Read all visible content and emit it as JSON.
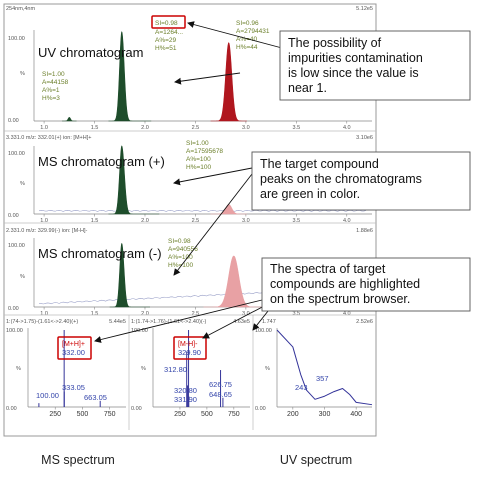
{
  "uv": {
    "header": "254nm,4nm",
    "scale": "5.12e5",
    "yticks": [
      "100.00",
      "%",
      "0.00"
    ],
    "label": "UV chromatogram",
    "info_green": [
      "SI=1.00",
      "A=44158",
      "A%=1",
      "H%=3"
    ],
    "si_top": "SI=0.98",
    "info_top_rest": [
      "A=1264...",
      "A%=29",
      "H%=51"
    ],
    "info_red": [
      "SI=0.96",
      "A=2794431",
      "A%=40",
      "H%=44"
    ]
  },
  "ms_pos": {
    "header": "3.331.0 m/z: 332.01(+) ion: [M+H]+",
    "scale": "3.10e6",
    "yticks": [
      "100.00",
      "%",
      "0.00"
    ],
    "label": "MS chromatogram (+)",
    "info": [
      "SI=1.00",
      "A=17595678",
      "A%=100",
      "H%=100"
    ]
  },
  "ms_neg": {
    "header": "2.331.0 m/z: 329.99(-) ion: [M-H]-",
    "scale": "1.88e6",
    "yticks": [
      "100.00",
      "%",
      "0.00"
    ],
    "label": "MS chromatogram (-)",
    "info": [
      "SI=0.98",
      "A=940556",
      "A%=100",
      "H%=100"
    ]
  },
  "rt_ticks": [
    "1.0",
    "1.5",
    "2.0",
    "2.5",
    "3.0",
    "3.5",
    "4.0"
  ],
  "spectra": {
    "panel1": {
      "header": "1:(74->1.75)-(1.61<->2.40)(+)",
      "scale": "5.44e5",
      "mh": "[M+H]+",
      "peak": "332.00",
      "labels": [
        "100.00",
        "333.05",
        "663.05"
      ],
      "ticks": [
        "250",
        "500",
        "750"
      ]
    },
    "panel2": {
      "header": "1:(1.74->1.76)-(1.61<->2.40)(-)",
      "scale": "4.63e5",
      "mh": "[M-H]-",
      "peak": "329.90",
      "labels": [
        "312.80",
        "320.80",
        "331.90",
        "626.75",
        "648.65"
      ],
      "ticks": [
        "250",
        "500",
        "750"
      ]
    },
    "panel3": {
      "header": "1.747",
      "scale": "2.52e6",
      "labels": [
        "243",
        "357"
      ],
      "ticks": [
        "200",
        "300",
        "400"
      ]
    },
    "yticks": [
      "100.00",
      "%",
      "0.00"
    ]
  },
  "callouts": [
    "The possibility of impurities contamination is low since the value is near 1.",
    "The target compound peaks on the chromatograms are green in color.",
    "The spectra of target compounds are highlighted on the spectrum browser."
  ],
  "callout_lines": {
    "c1": [
      "The possibility of",
      "impurities contamination",
      "is low since the value is",
      "near 1."
    ],
    "c2": [
      "The target compound",
      "peaks on the chromatograms",
      "are green in color."
    ],
    "c3": [
      "The spectra of target",
      "compounds are highlighted",
      "on the spectrum browser."
    ]
  },
  "footer": {
    "ms": "MS spectrum",
    "uv": "UV spectrum"
  },
  "colors": {
    "target": "#1e4d2b",
    "impurity": "#b0161e",
    "impurity_light": "#e8a1a4",
    "highlight": "#cc0000",
    "spectrum_line": "#333399"
  },
  "chart_data": [
    {
      "type": "line",
      "title": "",
      "xlabel": "",
      "ylabel": "%",
      "xlim": [
        0.9,
        4.25
      ],
      "ylim": [
        0,
        100
      ],
      "series": [
        {
          "name": "UV chromatogram",
          "x": [
            1.25,
            1.77,
            2.83
          ],
          "y": [
            4,
            98,
            86
          ]
        }
      ],
      "grid": false
    },
    {
      "type": "line",
      "title": "",
      "xlabel": "",
      "ylabel": "%",
      "xlim": [
        0.9,
        4.25
      ],
      "ylim": [
        0,
        100
      ],
      "series": [
        {
          "name": "MS chromatogram (+)",
          "x": [
            1.77,
            2.83
          ],
          "y": [
            100,
            14
          ]
        }
      ],
      "grid": false
    },
    {
      "type": "line",
      "title": "",
      "xlabel": "",
      "ylabel": "%",
      "xlim": [
        0.9,
        4.25
      ],
      "ylim": [
        0,
        100
      ],
      "series": [
        {
          "name": "MS chromatogram (-)",
          "x": [
            1.77,
            2.88
          ],
          "y": [
            92,
            74
          ]
        }
      ],
      "grid": false
    },
    {
      "type": "bar",
      "title": "",
      "xlabel": "",
      "ylabel": "%",
      "xlim": [
        0,
        900
      ],
      "ylim": [
        0,
        100
      ],
      "x": [
        100.0,
        332.0,
        333.05,
        663.05
      ],
      "values": [
        5,
        100,
        20,
        8
      ]
    },
    {
      "type": "bar",
      "title": "",
      "xlabel": "",
      "ylabel": "%",
      "xlim": [
        0,
        900
      ],
      "ylim": [
        0,
        100
      ],
      "x": [
        312.8,
        320.8,
        329.9,
        331.9,
        626.75,
        648.65
      ],
      "values": [
        72,
        28,
        100,
        14,
        48,
        12
      ]
    },
    {
      "type": "line",
      "title": "",
      "xlabel": "",
      "ylabel": "%",
      "xlim": [
        150,
        450
      ],
      "ylim": [
        0,
        100
      ],
      "x": [
        150,
        200,
        225,
        243,
        270,
        300,
        330,
        357,
        380,
        400,
        450
      ],
      "y": [
        100,
        78,
        42,
        22,
        10,
        14,
        20,
        24,
        16,
        6,
        3
      ]
    }
  ]
}
